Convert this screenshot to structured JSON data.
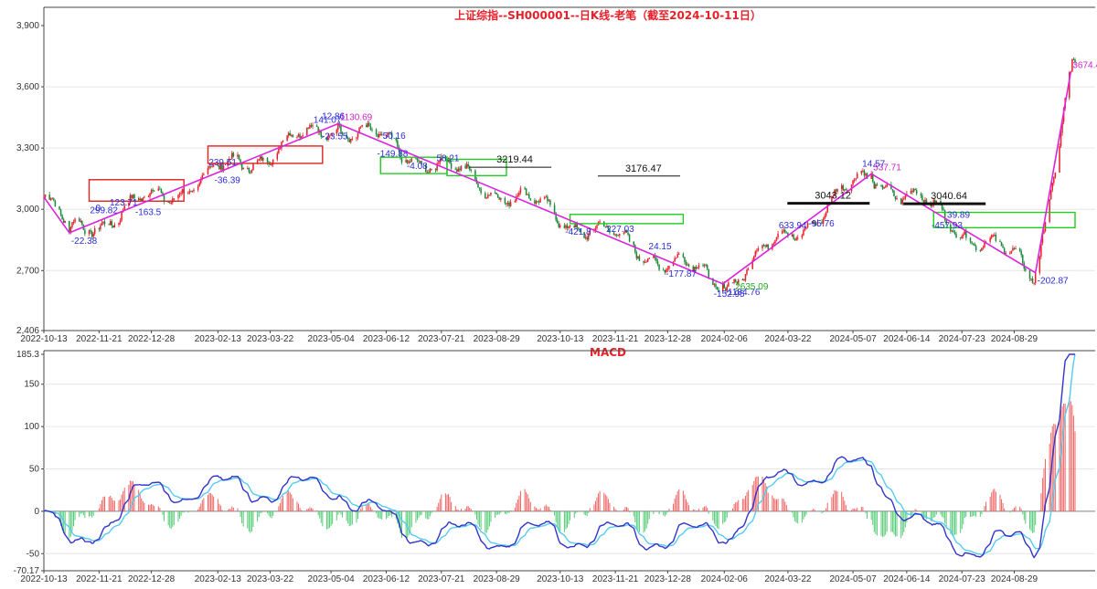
{
  "chart_data": [
    {
      "type": "candlestick",
      "title": "上证综指--SH000001--日K线-老笔（截至2024-10-11日）",
      "y_ticks": [
        "3,900",
        "3,600",
        "3,300",
        "3,000",
        "2,700",
        "2,406"
      ],
      "ylim": [
        2406,
        3900
      ],
      "x_ticks": [
        "2022-10-13",
        "2022-11-21",
        "2022-12-28",
        "2023-02-13",
        "2023-03-22",
        "2023-05-04",
        "2023-06-12",
        "2023-07-21",
        "2023-08-29",
        "2023-10-13",
        "2023-11-21",
        "2023-12-28",
        "2024-02-06",
        "2024-03-22",
        "2024-05-07",
        "2024-06-14",
        "2024-07-23",
        "2024-08-29"
      ],
      "stroke_points": [
        {
          "date": "2022-10-13",
          "value": 3060
        },
        {
          "date": "2022-10-31",
          "value": 2885,
          "label": "-22.38"
        },
        {
          "date": "2023-05-09",
          "value": 3419,
          "label": "1130.69"
        },
        {
          "date": "2024-02-05",
          "value": 2635,
          "label": "-1184.76"
        },
        {
          "date": "2024-05-20",
          "value": 3174,
          "label": "537.71"
        },
        {
          "date": "2024-09-13",
          "value": 2689,
          "label": "-202.87"
        },
        {
          "date": "2024-10-08",
          "value": 3674,
          "label": "3674.4"
        }
      ],
      "blue_segments": [
        {
          "date": "2022-11-21",
          "label": "299.82"
        },
        {
          "date": "2022-11-25",
          "label": "0"
        },
        {
          "date": "2022-12-05",
          "label": "123.71"
        },
        {
          "date": "2022-12-23",
          "label": "-163.5"
        },
        {
          "date": "2023-02-13",
          "label": "239.51"
        },
        {
          "date": "2023-02-17",
          "label": "-36.39"
        },
        {
          "date": "2023-04-28",
          "label": "141.07"
        },
        {
          "date": "2023-05-04",
          "label": "12.86"
        },
        {
          "date": "2023-05-04",
          "label": "-23.55"
        },
        {
          "date": "2023-06-12",
          "label": "-149.88"
        },
        {
          "date": "2023-06-16",
          "label": "50.16"
        },
        {
          "date": "2023-07-03",
          "label": "-4.08"
        },
        {
          "date": "2023-07-24",
          "label": "58.21"
        },
        {
          "date": "2023-10-23",
          "label": "-421.8"
        },
        {
          "date": "2023-11-21",
          "label": "227.03"
        },
        {
          "date": "2023-12-21",
          "label": "24.15"
        },
        {
          "date": "2024-01-02",
          "label": "-177.87"
        },
        {
          "date": "2024-02-05",
          "label": "-152.95"
        },
        {
          "date": "2024-03-22",
          "label": "633.94"
        },
        {
          "date": "2024-04-12",
          "label": "-95.76"
        },
        {
          "date": "2024-05-20",
          "label": "14.57"
        },
        {
          "date": "2024-07-08",
          "label": "-457.93"
        },
        {
          "date": "2024-07-19",
          "label": "39.89"
        }
      ],
      "level_labels": [
        {
          "date": "2023-08-29",
          "value": 3219.44,
          "label": "3219.44"
        },
        {
          "date": "2023-11-28",
          "value": 3176.47,
          "label": "3176.47"
        },
        {
          "date": "2024-04-10",
          "value": 3043.12,
          "label": "3043.12"
        },
        {
          "date": "2024-07-01",
          "value": 3040.64,
          "label": "3040.64"
        }
      ],
      "low_label": {
        "date": "2024-02-06",
        "value": 2635.09,
        "label": "2635.09"
      },
      "candles": "synthetic series following the stroke points"
    },
    {
      "type": "macd",
      "title": "MACD",
      "y_ticks": [
        "185.3",
        "150",
        "100",
        "50",
        "0",
        "-50",
        "-70.17"
      ],
      "ylim": [
        -70.17,
        185.3
      ],
      "x_ticks": [
        "2022-10-13",
        "2022-11-21",
        "2022-12-28",
        "2023-02-13",
        "2023-03-22",
        "2023-05-04",
        "2023-06-12",
        "2023-07-21",
        "2023-08-29",
        "2023-10-13",
        "2023-11-21",
        "2023-12-28",
        "2024-02-06",
        "2024-03-22",
        "2024-05-07",
        "2024-06-14",
        "2024-07-23",
        "2024-08-29"
      ],
      "series": [
        {
          "key": "dif",
          "color": "#3333cc"
        },
        {
          "key": "dea",
          "color": "#55ccee"
        },
        {
          "key": "hist",
          "color_pos": "#ee6666",
          "color_neg": "#55cc77"
        }
      ]
    }
  ],
  "colors": {
    "title": "#e8202a",
    "candle_up": "#e8202a",
    "candle_down": "#1a8a3a",
    "stroke": "#dd22dd",
    "segment": "#5555ee",
    "box_red": "#dd2222",
    "box_green": "#22cc22"
  }
}
